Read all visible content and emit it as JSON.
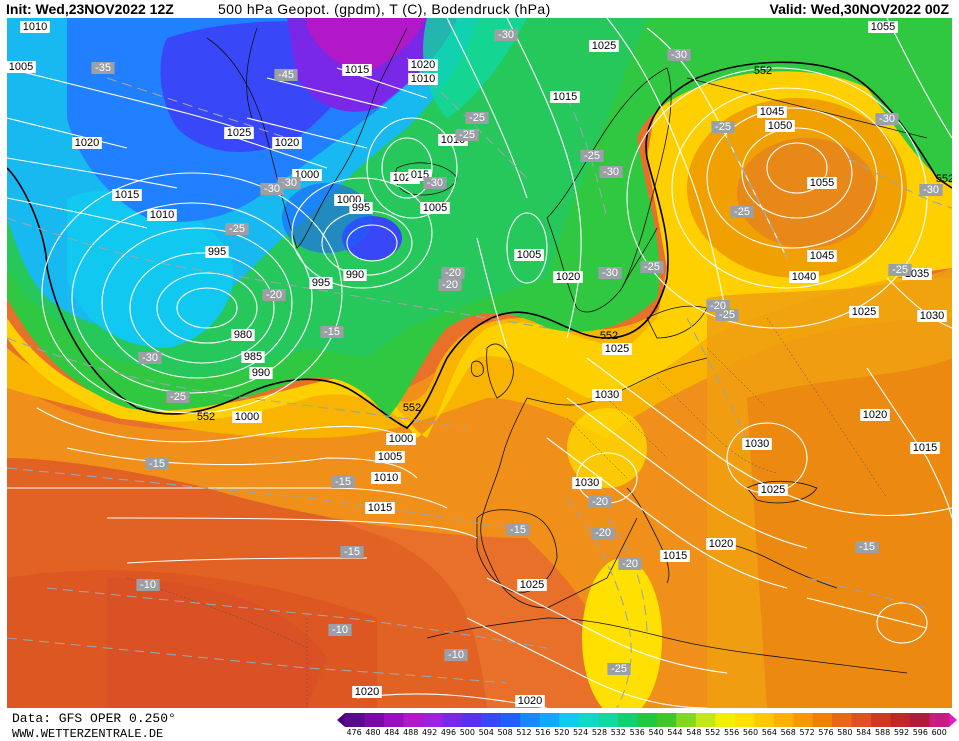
{
  "header": {
    "init": "Init: Wed,23NOV2022 12Z",
    "title": "500 hPa Geopot. (gpdm), T (C), Bodendruck (hPa)",
    "valid": "Valid: Wed,30NOV2022 00Z"
  },
  "footer": {
    "data_source": "Data: GFS OPER 0.250°",
    "website": "WWW.WETTERZENTRALE.DE"
  },
  "scale": {
    "values": [
      "476",
      "480",
      "484",
      "488",
      "492",
      "496",
      "500",
      "504",
      "508",
      "512",
      "516",
      "520",
      "524",
      "528",
      "532",
      "536",
      "540",
      "544",
      "548",
      "552",
      "556",
      "560",
      "564",
      "568",
      "572",
      "576",
      "580",
      "584",
      "588",
      "592",
      "596",
      "600"
    ],
    "colors": [
      "#4b0082",
      "#5a0a8c",
      "#7a0aa8",
      "#9a10c0",
      "#b018c8",
      "#a020e0",
      "#7a28e8",
      "#5a30f0",
      "#3848f8",
      "#2060ff",
      "#1888ff",
      "#10a8ff",
      "#10c8f0",
      "#10d8c8",
      "#10d8a0",
      "#10d070",
      "#20c840",
      "#40c828",
      "#80d820",
      "#c0e818",
      "#f0f000",
      "#ffe000",
      "#ffc800",
      "#ffb000",
      "#f89800",
      "#f08000",
      "#e86818",
      "#e05020",
      "#d03820",
      "#c02828",
      "#b01c3c",
      "#c81c80",
      "#e01cc0"
    ]
  },
  "pressure_labels": [
    {
      "text": "1010"
    },
    {
      "text": "1005"
    },
    {
      "text": "1020"
    },
    {
      "text": "1015"
    },
    {
      "text": "1010"
    },
    {
      "text": "995"
    },
    {
      "text": "980"
    },
    {
      "text": "985"
    },
    {
      "text": "990"
    },
    {
      "text": "1000"
    },
    {
      "text": "1025"
    },
    {
      "text": "1020"
    },
    {
      "text": "1000"
    },
    {
      "text": "1000"
    },
    {
      "text": "995"
    },
    {
      "text": "990"
    },
    {
      "text": "995"
    },
    {
      "text": "1000"
    },
    {
      "text": "1005"
    },
    {
      "text": "1010"
    },
    {
      "text": "1015"
    },
    {
      "text": "1015"
    },
    {
      "text": "1020"
    },
    {
      "text": "1010"
    },
    {
      "text": "1020"
    },
    {
      "text": "015"
    },
    {
      "text": "1005"
    },
    {
      "text": "1010"
    },
    {
      "text": "1025"
    },
    {
      "text": "1015"
    },
    {
      "text": "1005"
    },
    {
      "text": "1020"
    },
    {
      "text": "1025"
    },
    {
      "text": "1030"
    },
    {
      "text": "1030"
    },
    {
      "text": "1015"
    },
    {
      "text": "1025"
    },
    {
      "text": "1020"
    },
    {
      "text": "1045"
    },
    {
      "text": "1050"
    },
    {
      "text": "1055"
    },
    {
      "text": "1045"
    },
    {
      "text": "1040"
    },
    {
      "text": "1035"
    },
    {
      "text": "1025"
    },
    {
      "text": "1020"
    },
    {
      "text": "1030"
    },
    {
      "text": "1025"
    },
    {
      "text": "1015"
    },
    {
      "text": "1055"
    },
    {
      "text": "1030"
    },
    {
      "text": "1020"
    },
    {
      "text": "1020"
    },
    {
      "text": "1020"
    },
    {
      "text": "1030"
    }
  ],
  "temp_labels": [
    {
      "text": "-35"
    },
    {
      "text": "-45"
    },
    {
      "text": "-30"
    },
    {
      "text": "-30"
    },
    {
      "text": "-25"
    },
    {
      "text": "-25"
    },
    {
      "text": "-20"
    },
    {
      "text": "-30"
    },
    {
      "text": "-25"
    },
    {
      "text": "-20"
    },
    {
      "text": "-15"
    },
    {
      "text": "-15"
    },
    {
      "text": "-15"
    },
    {
      "text": "-10"
    },
    {
      "text": "-10"
    },
    {
      "text": "-10"
    },
    {
      "text": "-30"
    },
    {
      "text": "-30"
    },
    {
      "text": "-25"
    },
    {
      "text": "-20"
    },
    {
      "text": "-30"
    },
    {
      "text": "-25"
    },
    {
      "text": "-25"
    },
    {
      "text": "-25"
    },
    {
      "text": "-20"
    },
    {
      "text": "-30"
    },
    {
      "text": "-30"
    },
    {
      "text": "-25"
    },
    {
      "text": "-20"
    },
    {
      "text": "-15"
    },
    {
      "text": "-15"
    },
    {
      "text": "-20"
    },
    {
      "text": "-20"
    },
    {
      "text": "-25"
    },
    {
      "text": "-25"
    },
    {
      "text": "-15"
    },
    {
      "text": "-30"
    },
    {
      "text": "-30"
    },
    {
      "text": "-25"
    }
  ],
  "contour_labels": [
    {
      "text": "552"
    },
    {
      "text": "552"
    },
    {
      "text": "552"
    },
    {
      "text": "552"
    },
    {
      "text": "552"
    }
  ]
}
